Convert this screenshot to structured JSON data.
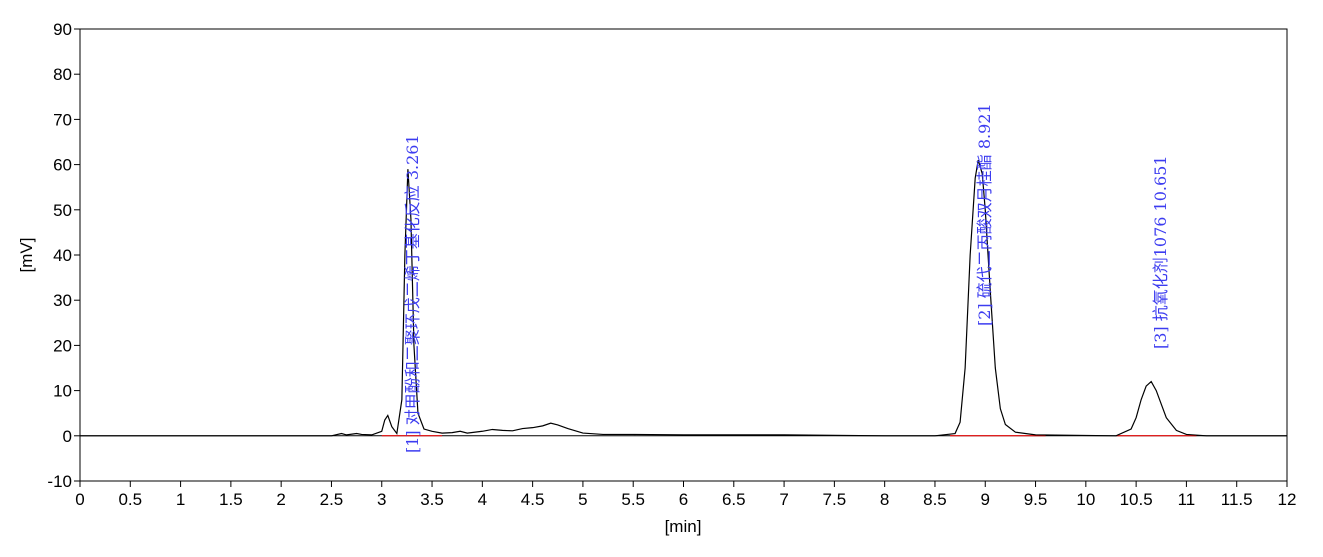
{
  "chart_data": {
    "type": "line",
    "xlabel": "[min]",
    "ylabel": "[mV]",
    "xlim": [
      0,
      12
    ],
    "ylim": [
      -10,
      90
    ],
    "xticks": [
      0,
      0.5,
      1,
      1.5,
      2,
      2.5,
      3,
      3.5,
      4,
      4.5,
      5,
      5.5,
      6,
      6.5,
      7,
      7.5,
      8,
      8.5,
      9,
      9.5,
      10,
      10.5,
      11,
      11.5,
      12
    ],
    "yticks": [
      -10,
      0,
      10,
      20,
      30,
      40,
      50,
      60,
      70,
      80,
      90
    ],
    "color": "#000000",
    "x": [
      0,
      2.5,
      2.6,
      2.65,
      2.75,
      2.8,
      2.9,
      3.0,
      3.03,
      3.06,
      3.1,
      3.15,
      3.2,
      3.23,
      3.26,
      3.29,
      3.32,
      3.36,
      3.42,
      3.5,
      3.6,
      3.7,
      3.78,
      3.85,
      4.0,
      4.1,
      4.2,
      4.3,
      4.4,
      4.5,
      4.6,
      4.68,
      4.75,
      4.85,
      5.0,
      5.2,
      5.5,
      6.0,
      6.5,
      7.0,
      7.5,
      8.0,
      8.5,
      8.7,
      8.75,
      8.8,
      8.85,
      8.9,
      8.93,
      8.97,
      9.0,
      9.05,
      9.1,
      9.15,
      9.2,
      9.3,
      9.5,
      10.3,
      10.45,
      10.5,
      10.55,
      10.6,
      10.65,
      10.7,
      10.75,
      10.8,
      10.9,
      11.0,
      11.2,
      12
    ],
    "values": [
      0,
      0,
      0.5,
      0.2,
      0.5,
      0.3,
      0.2,
      1,
      3.5,
      4.5,
      2,
      0.5,
      8,
      40,
      59,
      48,
      20,
      5,
      1.5,
      1,
      0.6,
      0.7,
      1,
      0.6,
      1,
      1.4,
      1.2,
      1.1,
      1.6,
      1.8,
      2.2,
      2.8,
      2.4,
      1.6,
      0.6,
      0.3,
      0.3,
      0.2,
      0.2,
      0.2,
      0.1,
      0,
      0,
      0.5,
      3,
      15,
      40,
      57,
      61,
      58,
      50,
      32,
      15,
      6,
      2.5,
      0.8,
      0.2,
      0,
      1.5,
      4,
      8,
      11,
      12,
      10,
      7,
      4,
      1.2,
      0.3,
      0,
      0
    ],
    "baselines": {
      "color": "#ff0000",
      "segments": [
        {
          "x": [
            3.0,
            3.6
          ],
          "values": [
            0,
            0
          ]
        },
        {
          "x": [
            8.65,
            9.6
          ],
          "values": [
            0,
            0
          ]
        },
        {
          "x": [
            10.3,
            11.1
          ],
          "values": [
            0,
            0
          ]
        }
      ]
    },
    "annotations": [
      "[1] 对甲酚和二聚环戊二烯丁基化反应 3.261",
      "[2] 硫代二丙酸双月桂酯 8.921",
      "[3] 抗氧化剂1076 10.651"
    ],
    "annotation_color": "#3c3cf0"
  }
}
